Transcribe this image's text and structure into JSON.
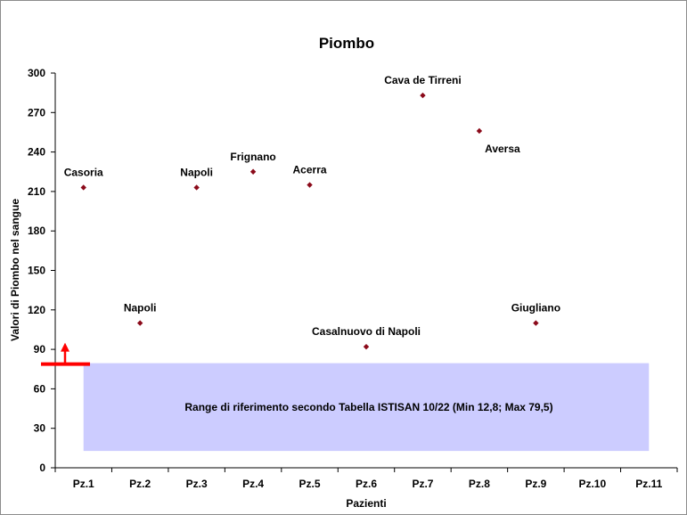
{
  "chart_data": {
    "type": "scatter",
    "title": "Piombo",
    "xlabel": "Pazienti",
    "ylabel": "Valori di Piombo nel sangue",
    "ylim": [
      0,
      300
    ],
    "yticks": [
      0,
      30,
      60,
      90,
      120,
      150,
      180,
      210,
      240,
      270,
      300
    ],
    "categories": [
      "Pz.1",
      "Pz.2",
      "Pz.3",
      "Pz.4",
      "Pz.5",
      "Pz.6",
      "Pz.7",
      "Pz.8",
      "Pz.9",
      "Pz.10",
      "Pz.11"
    ],
    "points": [
      {
        "x": "Pz.1",
        "y": 213,
        "label": "Casoria"
      },
      {
        "x": "Pz.2",
        "y": 110,
        "label": "Napoli"
      },
      {
        "x": "Pz.3",
        "y": 213,
        "label": "Napoli"
      },
      {
        "x": "Pz.4",
        "y": 225,
        "label": "Frignano"
      },
      {
        "x": "Pz.5",
        "y": 215,
        "label": "Acerra"
      },
      {
        "x": "Pz.6",
        "y": 92,
        "label": "Casalnuovo di Napoli"
      },
      {
        "x": "Pz.7",
        "y": 283,
        "label": "Cava de Tirreni"
      },
      {
        "x": "Pz.8",
        "y": 256,
        "label": "Aversa"
      },
      {
        "x": "Pz.9",
        "y": 110,
        "label": "Giugliano"
      }
    ],
    "reference_range": {
      "min": 12.8,
      "max": 79.5,
      "text": "Range di riferimento secondo Tabella ISTISAN 10/22 (Min 12,8; Max 79,5)",
      "color": "#ccccff"
    },
    "threshold_marker": {
      "y": 79.5,
      "color": "#ff0000"
    },
    "marker_color": "#8b0a1a",
    "grid": false,
    "legend": "none"
  }
}
